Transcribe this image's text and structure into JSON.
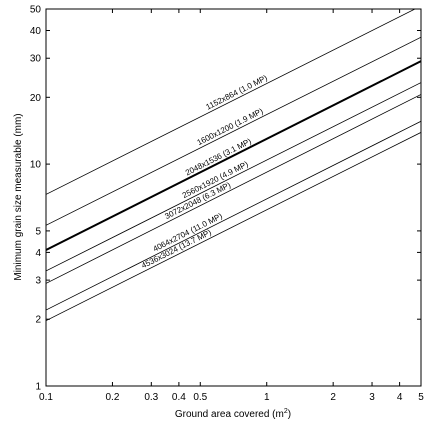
{
  "chart_data": {
    "type": "line",
    "title": "",
    "xlabel": "Ground area covered (m",
    "xlabel_superscript": "2",
    "xlabel_close": ")",
    "ylabel": "Minimum grain size measurable (mm)",
    "x_scale": "log",
    "y_scale": "log",
    "xlim": [
      0.1,
      5
    ],
    "ylim": [
      1,
      50
    ],
    "grid": false,
    "x_ticks": [
      0.1,
      0.2,
      0.3,
      0.4,
      0.5,
      1,
      2,
      3,
      4,
      5
    ],
    "x_tick_labels": [
      "0.1",
      "0.2",
      "0.3",
      "0.4",
      "0.5",
      "1",
      "2",
      "3",
      "4",
      "5"
    ],
    "y_ticks": [
      1,
      2,
      3,
      4,
      5,
      10,
      20,
      30,
      40,
      50
    ],
    "y_tick_labels": [
      "1",
      "2",
      "3",
      "4",
      "5",
      "10",
      "20",
      "30",
      "40",
      "50"
    ],
    "series": [
      {
        "name": "1152x864 (1.0 MP)",
        "x": [
          0.1,
          5
        ],
        "y": [
          7.3,
          51.6
        ],
        "emphasis": false
      },
      {
        "name": "1600x1200 (1.9 MP)",
        "x": [
          0.1,
          5
        ],
        "y": [
          5.3,
          37.3
        ],
        "emphasis": false
      },
      {
        "name": "2048x1536 (3.1 MP)",
        "x": [
          0.1,
          5
        ],
        "y": [
          4.1,
          29.1
        ],
        "emphasis": true
      },
      {
        "name": "2560x1920 (4.9 MP)",
        "x": [
          0.1,
          5
        ],
        "y": [
          3.3,
          23.3
        ],
        "emphasis": false
      },
      {
        "name": "3072x2048 (6.3 MP)",
        "x": [
          0.1,
          5
        ],
        "y": [
          2.9,
          20.6
        ],
        "emphasis": false
      },
      {
        "name": "4064x2704 (11.0 MP)",
        "x": [
          0.1,
          5
        ],
        "y": [
          2.2,
          15.6
        ],
        "emphasis": false
      },
      {
        "name": "4536x3024 (13.7 MP)",
        "x": [
          0.1,
          5
        ],
        "y": [
          1.97,
          13.9
        ],
        "emphasis": false
      }
    ],
    "series_label_x": [
      0.75,
      0.7,
      0.62,
      0.6,
      0.5,
      0.45,
      0.4
    ]
  }
}
